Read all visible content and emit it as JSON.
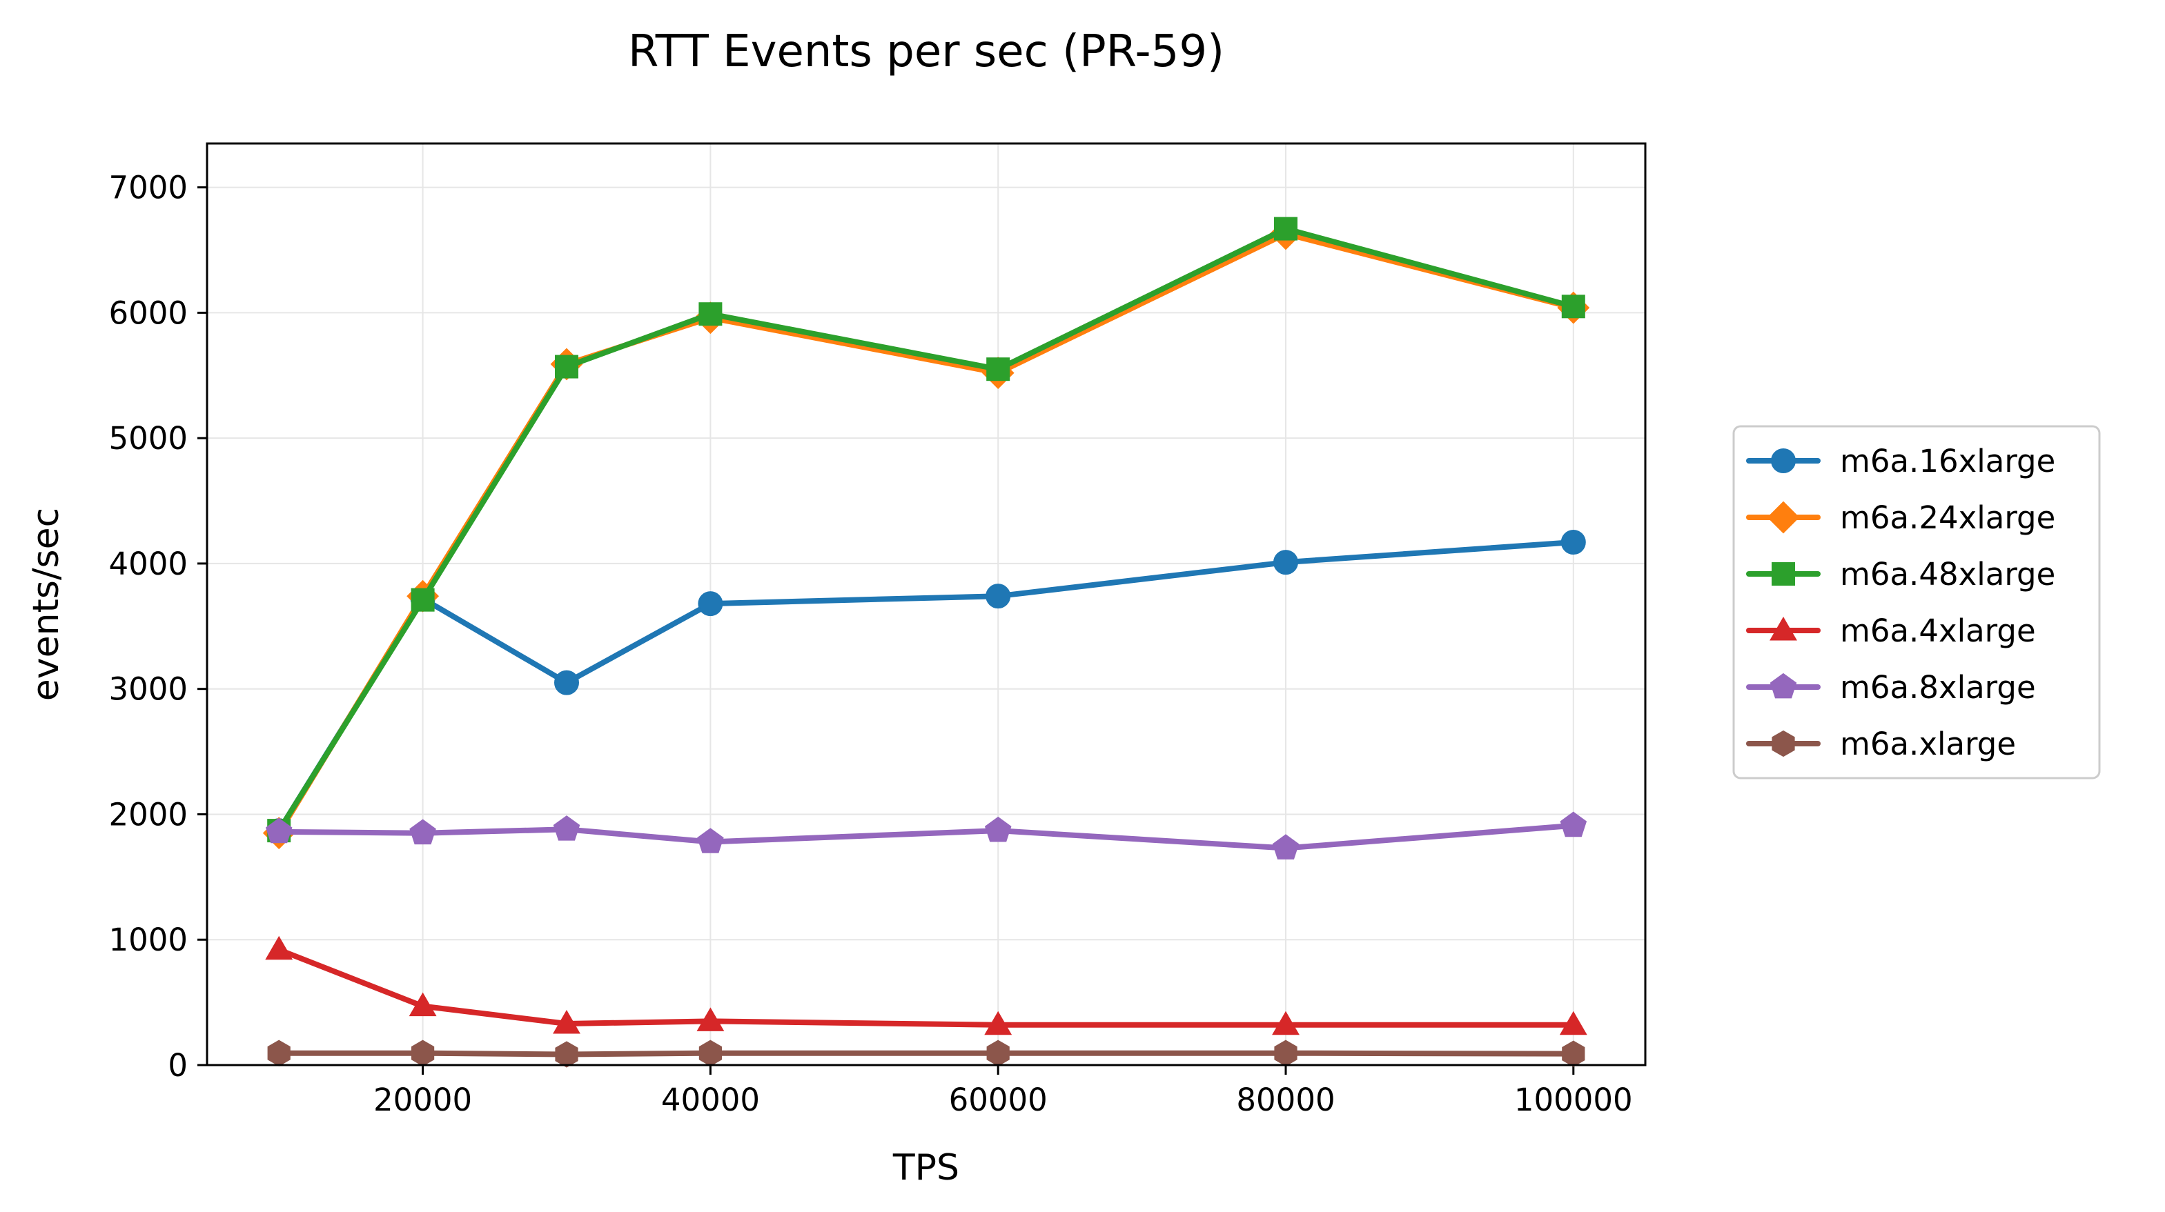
{
  "chart_data": {
    "type": "line",
    "title": "RTT Events per sec (PR-59)",
    "xlabel": "TPS",
    "ylabel": "events/sec",
    "x": [
      10000,
      20000,
      30000,
      40000,
      60000,
      80000,
      100000
    ],
    "xlim": [
      5000,
      105000
    ],
    "ylim": [
      0,
      7350
    ],
    "xticks": [
      20000,
      40000,
      60000,
      80000,
      100000
    ],
    "yticks": [
      0,
      1000,
      2000,
      3000,
      4000,
      5000,
      6000,
      7000
    ],
    "grid": true,
    "legend_position": "outside-right",
    "series": [
      {
        "name": "m6a.16xlarge",
        "color": "#1f77b4",
        "marker": "circle",
        "values": [
          1870,
          3720,
          3050,
          3680,
          3740,
          4010,
          4170
        ]
      },
      {
        "name": "m6a.24xlarge",
        "color": "#ff7f0e",
        "marker": "diamond",
        "values": [
          1850,
          3740,
          5590,
          5960,
          5520,
          6630,
          6040
        ]
      },
      {
        "name": "m6a.48xlarge",
        "color": "#2ca02c",
        "marker": "square",
        "values": [
          1870,
          3710,
          5570,
          5990,
          5550,
          6670,
          6050
        ]
      },
      {
        "name": "m6a.4xlarge",
        "color": "#d62728",
        "marker": "triangle",
        "values": [
          920,
          470,
          330,
          350,
          320,
          320,
          320
        ]
      },
      {
        "name": "m6a.8xlarge",
        "color": "#9467bd",
        "marker": "pentagon",
        "values": [
          1860,
          1850,
          1880,
          1780,
          1870,
          1730,
          1910
        ]
      },
      {
        "name": "m6a.xlarge",
        "color": "#8c564b",
        "marker": "hexagon",
        "values": [
          95,
          95,
          85,
          95,
          95,
          95,
          90
        ]
      }
    ]
  }
}
